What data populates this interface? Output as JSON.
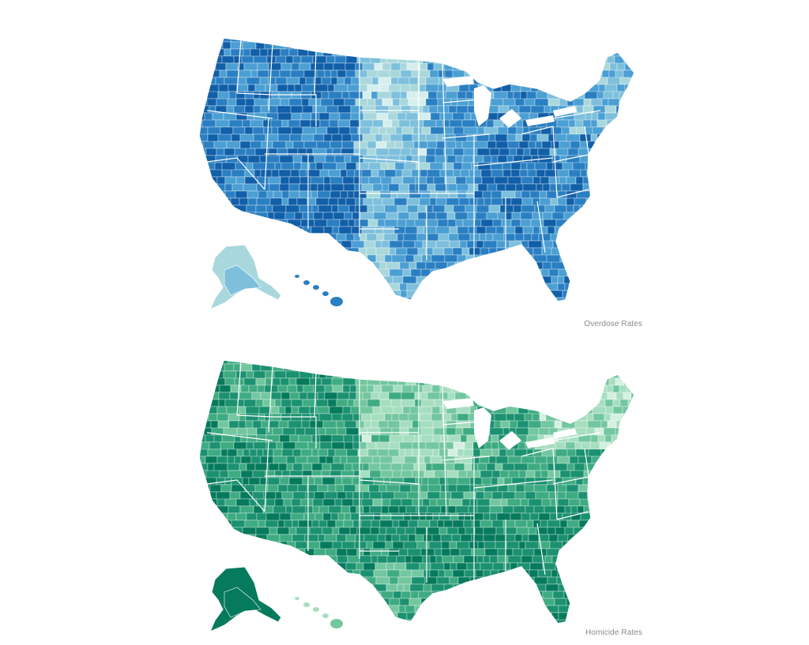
{
  "maps": [
    {
      "id": "overdose",
      "caption": "Overdose Rates",
      "palette": [
        "#d6efee",
        "#a9d8dc",
        "#7ec0dc",
        "#4b9fd3",
        "#2a7fc2",
        "#115fa8"
      ],
      "border_color": "#ffffff"
    },
    {
      "id": "homicide",
      "caption": "Homicide Rates",
      "palette": [
        "#d5f0e1",
        "#a6dec0",
        "#73c7a0",
        "#3fab82",
        "#1b9170",
        "#067a5c"
      ],
      "border_color": "#ffffff"
    }
  ]
}
